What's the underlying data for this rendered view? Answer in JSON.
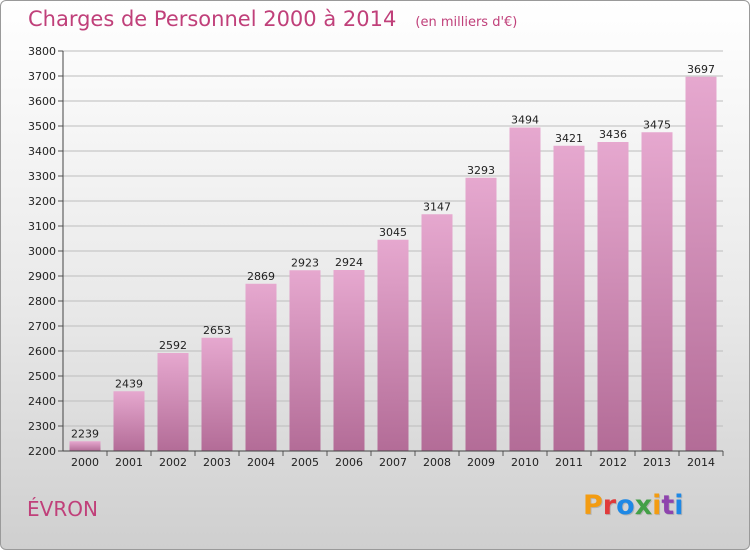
{
  "header": {
    "title": "Charges de Personnel 2000 à 2014",
    "unit": "(en milliers d'€)"
  },
  "footer": {
    "city": "ÉVRON",
    "logo": "Proxiti",
    "logo_colors": [
      "#f39c12",
      "#e03a3a",
      "#1e88e5",
      "#43a047",
      "#f39c12",
      "#8e44ad",
      "#1e88e5"
    ]
  },
  "colors": {
    "bar_top": "#e6a8cf",
    "bar_bottom": "#b36c97",
    "title": "#c0407a",
    "grid": "#bdbdbd"
  },
  "chart_data": {
    "type": "bar",
    "categories": [
      "2000",
      "2001",
      "2002",
      "2003",
      "2004",
      "2005",
      "2006",
      "2007",
      "2008",
      "2009",
      "2010",
      "2011",
      "2012",
      "2013",
      "2014"
    ],
    "values": [
      2239,
      2439,
      2592,
      2653,
      2869,
      2923,
      2924,
      3045,
      3147,
      3293,
      3494,
      3421,
      3436,
      3475,
      3697
    ],
    "title": "Charges de Personnel 2000 à 2014",
    "subtitle": "(en milliers d'€)",
    "ylim": [
      2200,
      3800
    ],
    "yticks": [
      2200,
      2300,
      2400,
      2500,
      2600,
      2700,
      2800,
      2900,
      3000,
      3100,
      3200,
      3300,
      3400,
      3500,
      3600,
      3700,
      3800
    ],
    "grid": true,
    "data_labels": true
  }
}
